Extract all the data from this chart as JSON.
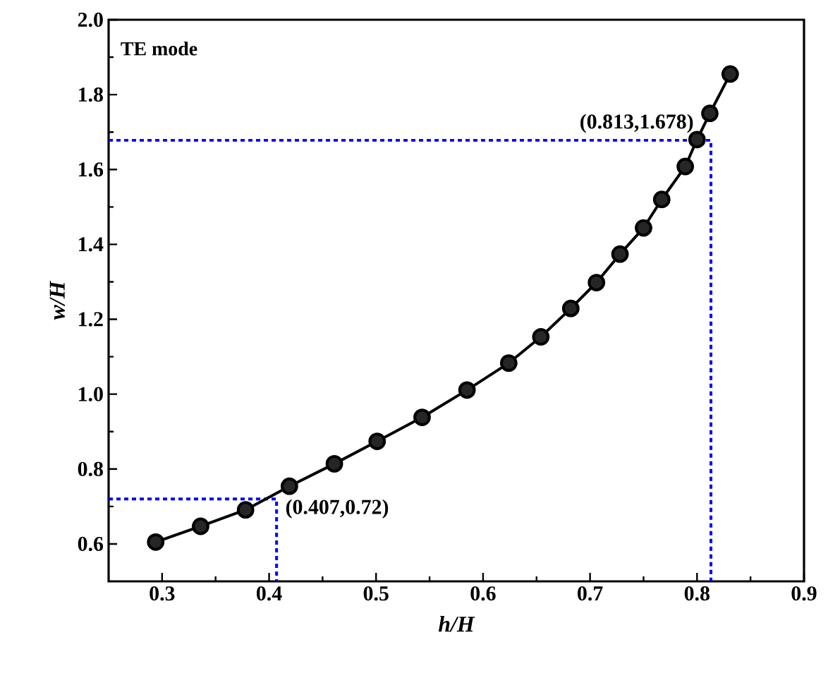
{
  "chart_data": {
    "type": "line",
    "xlabel": "h/H",
    "ylabel": "w/H",
    "x": [
      0.294,
      0.336,
      0.378,
      0.419,
      0.461,
      0.501,
      0.543,
      0.585,
      0.624,
      0.654,
      0.682,
      0.706,
      0.728,
      0.75,
      0.767,
      0.789,
      0.8,
      0.812,
      0.831
    ],
    "series": [
      {
        "type": "line",
        "color": "#0000ff",
        "line_style": "dotted",
        "marker": "none",
        "x": [
          0.25,
          0.407,
          0.407
        ],
        "values": [
          0.72,
          0.72,
          0.5
        ]
      },
      {
        "type": "line",
        "color": "#0000ff",
        "line_style": "dotted",
        "marker": "none",
        "x": [
          0.25,
          0.813,
          0.813
        ],
        "values": [
          1.678,
          1.678,
          0.5
        ]
      },
      {
        "color": "#000000",
        "values": [
          0.605,
          0.647,
          0.691,
          0.754,
          0.814,
          0.874,
          0.938,
          1.011,
          1.083,
          1.153,
          1.229,
          1.298,
          1.374,
          1.444,
          1.52,
          1.608,
          1.68,
          1.75,
          1.855
        ]
      }
    ],
    "xlim": [
      0.25,
      0.9
    ],
    "ylim": [
      0.5,
      2.0
    ],
    "xticks": [
      0.3,
      0.4,
      0.5,
      0.6,
      0.7,
      0.8,
      0.9
    ],
    "yticks": [
      0.6,
      0.8,
      {
        "value": 1.0,
        "label": "1.0"
      },
      1.2,
      1.4,
      1.6,
      1.8,
      {
        "value": 2.0,
        "label": "2.0"
      }
    ],
    "marker": "circle",
    "line_style": "solid",
    "annotations": [
      "TE mode",
      {
        "text": "(0.407,0.72)",
        "x": 0.407,
        "y": 0.72
      },
      {
        "text": "(0.813,1.678)",
        "x": 0.813,
        "y": 1.678
      }
    ]
  }
}
